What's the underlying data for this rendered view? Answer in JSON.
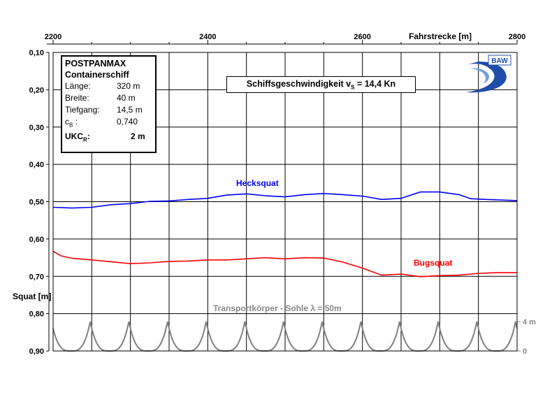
{
  "chart_data": {
    "type": "line",
    "x_axis": {
      "label": "Fahrstrecke [m]",
      "range": [
        2200,
        2800
      ],
      "ticks": [
        2200,
        2400,
        2600,
        2800
      ],
      "position": "top"
    },
    "y_axis": {
      "label": "Squat [m]",
      "range": [
        0.1,
        0.9
      ],
      "ticks": [
        "0,10",
        "0,20",
        "0,30",
        "0,40",
        "0,50",
        "0,60",
        "0,70",
        "0,80",
        "0,90"
      ],
      "inverted": true
    },
    "secondary_y_axis": {
      "ticks": [
        "4 m",
        "0"
      ],
      "values": [
        4,
        0
      ]
    },
    "grid": true,
    "series": [
      {
        "name": "Hecksquat",
        "color": "#0000ff",
        "points": [
          [
            2200,
            0.515
          ],
          [
            2225,
            0.517
          ],
          [
            2250,
            0.515
          ],
          [
            2275,
            0.508
          ],
          [
            2300,
            0.505
          ],
          [
            2325,
            0.499
          ],
          [
            2350,
            0.498
          ],
          [
            2375,
            0.494
          ],
          [
            2400,
            0.491
          ],
          [
            2425,
            0.482
          ],
          [
            2450,
            0.479
          ],
          [
            2475,
            0.484
          ],
          [
            2500,
            0.487
          ],
          [
            2525,
            0.481
          ],
          [
            2550,
            0.478
          ],
          [
            2575,
            0.481
          ],
          [
            2600,
            0.485
          ],
          [
            2625,
            0.494
          ],
          [
            2650,
            0.491
          ],
          [
            2660,
            0.484
          ],
          [
            2675,
            0.474
          ],
          [
            2700,
            0.474
          ],
          [
            2725,
            0.481
          ],
          [
            2740,
            0.492
          ],
          [
            2760,
            0.494
          ],
          [
            2800,
            0.497
          ]
        ]
      },
      {
        "name": "Bugsquat",
        "color": "#ff0000",
        "points": [
          [
            2200,
            0.633
          ],
          [
            2210,
            0.645
          ],
          [
            2225,
            0.652
          ],
          [
            2250,
            0.656
          ],
          [
            2275,
            0.661
          ],
          [
            2300,
            0.666
          ],
          [
            2325,
            0.664
          ],
          [
            2350,
            0.66
          ],
          [
            2375,
            0.659
          ],
          [
            2400,
            0.656
          ],
          [
            2425,
            0.656
          ],
          [
            2450,
            0.653
          ],
          [
            2475,
            0.65
          ],
          [
            2500,
            0.653
          ],
          [
            2525,
            0.65
          ],
          [
            2550,
            0.651
          ],
          [
            2575,
            0.662
          ],
          [
            2600,
            0.678
          ],
          [
            2625,
            0.697
          ],
          [
            2650,
            0.694
          ],
          [
            2675,
            0.701
          ],
          [
            2700,
            0.698
          ],
          [
            2725,
            0.697
          ],
          [
            2750,
            0.692
          ],
          [
            2775,
            0.69
          ],
          [
            2800,
            0.69
          ]
        ]
      }
    ],
    "annotations": {
      "hecksquat_label": "Hecksquat",
      "bugsquat_label": "Bugsquat",
      "transport_label": "Transportkörper - Sohle  λ = 50m",
      "transport_wavelength_m": 50,
      "transport_height_m": 4
    }
  },
  "infobox": {
    "title1": "POSTPANMAX",
    "title2": "Containerschiff",
    "rows": [
      {
        "k": "Länge:",
        "v": "320 m"
      },
      {
        "k": "Breite:",
        "v": "40 m"
      },
      {
        "k": "Tiefgang:",
        "v": "14,5 m"
      },
      {
        "k_main": "c",
        "k_sub": "B",
        "k_rest": " :",
        "v": "0,740"
      }
    ],
    "ukc_main": "UKC",
    "ukc_sub": "R",
    "ukc_colon": ":",
    "ukc_value": "2 m"
  },
  "speedbox": {
    "pre": "Schiffsgeschwindigkeit v",
    "sub": "S",
    "post": " = 14,4 Kn"
  },
  "logo": {
    "text": "BAW"
  },
  "colors": {
    "heck": "#0000ff",
    "bug": "#ff0000",
    "transport": "#808080",
    "grid": "#000000"
  }
}
